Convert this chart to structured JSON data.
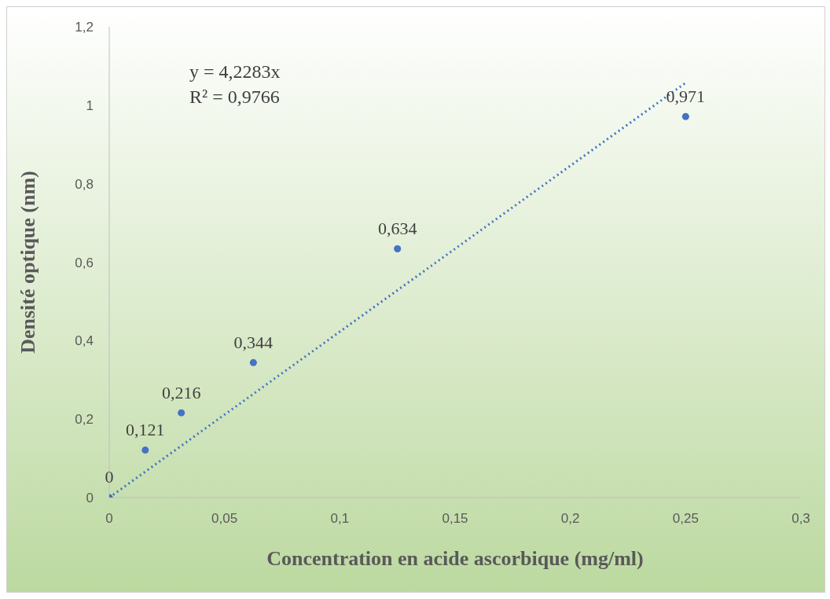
{
  "chart_data": {
    "type": "scatter",
    "xlabel": "Concentration en acide ascorbique (mg/ml)",
    "ylabel": "Densité optique (nm)",
    "annotations": [
      "y = 4,2283x",
      "R² = 0,9766"
    ],
    "series": [
      {
        "marker": "circle",
        "color": "#4472c4",
        "x": [
          0,
          0.015625,
          0.03125,
          0.0625,
          0.125,
          0.25
        ],
        "values": [
          0,
          0.121,
          0.216,
          0.344,
          0.634,
          0.971
        ],
        "value_labels": [
          "0",
          "0,121",
          "0,216",
          "0,344",
          "0,634",
          "0,971"
        ]
      },
      {
        "type": "line",
        "color": "#4472c4",
        "line_style": "dotted",
        "x": [
          0,
          0.25
        ],
        "values": [
          0,
          1.057
        ]
      }
    ],
    "xlim": [
      0,
      0.3
    ],
    "xticks": [
      0,
      {
        "value": 0.05,
        "label": "0,05"
      },
      {
        "value": 0.1,
        "label": "0,1"
      },
      {
        "value": 0.15,
        "label": "0,15"
      },
      {
        "value": 0.2,
        "label": "0,2"
      },
      {
        "value": 0.25,
        "label": "0,25"
      },
      {
        "value": 0.3,
        "label": "0,3"
      }
    ],
    "ylim": [
      0,
      1.2
    ],
    "yticks": [
      0,
      {
        "value": 0.2,
        "label": "0,2"
      },
      {
        "value": 0.4,
        "label": "0,4"
      },
      {
        "value": 0.6,
        "label": "0,6"
      },
      {
        "value": 0.8,
        "label": "0,8"
      },
      1,
      {
        "value": 1.2,
        "label": "1,2"
      }
    ]
  }
}
